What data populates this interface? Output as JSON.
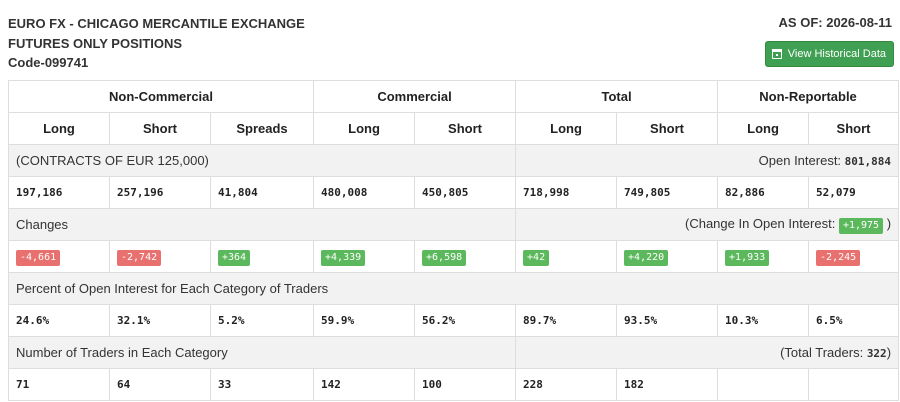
{
  "header": {
    "title_line1": "EURO FX - CHICAGO MERCANTILE EXCHANGE",
    "title_line2": "FUTURES ONLY POSITIONS",
    "code": "Code-099741",
    "as_of": "AS OF: 2026-08-11",
    "historical_button": "View Historical Data"
  },
  "groups": [
    "Non-Commercial",
    "Commercial",
    "Total",
    "Non-Reportable"
  ],
  "columns": [
    "Long",
    "Short",
    "Spreads",
    "Long",
    "Short",
    "Long",
    "Short",
    "Long",
    "Short"
  ],
  "contracts": {
    "label": "(CONTRACTS OF EUR 125,000)",
    "open_interest_label": "Open Interest:",
    "open_interest_value": "801,884",
    "values": [
      "197,186",
      "257,196",
      "41,804",
      "480,008",
      "450,805",
      "718,998",
      "749,805",
      "82,886",
      "52,079"
    ]
  },
  "changes": {
    "label": "Changes",
    "change_oi_label": "(Change In Open Interest:",
    "change_oi_value": "+1,975",
    "change_oi_close": ")",
    "values": [
      "-4,661",
      "-2,742",
      "+364",
      "+4,339",
      "+6,598",
      "+42",
      "+4,220",
      "+1,933",
      "-2,245"
    ],
    "colors": {
      "positive": "#5cb85c",
      "negative": "#e8716f"
    }
  },
  "percent": {
    "label": "Percent of Open Interest for Each Category of Traders",
    "values": [
      "24.6%",
      "32.1%",
      "5.2%",
      "59.9%",
      "56.2%",
      "89.7%",
      "93.5%",
      "10.3%",
      "6.5%"
    ]
  },
  "traders": {
    "label": "Number of Traders in Each Category",
    "total_label": "(Total Traders:",
    "total_value": "322",
    "total_close": ")",
    "values": [
      "71",
      "64",
      "33",
      "142",
      "100",
      "228",
      "182",
      "",
      ""
    ]
  }
}
